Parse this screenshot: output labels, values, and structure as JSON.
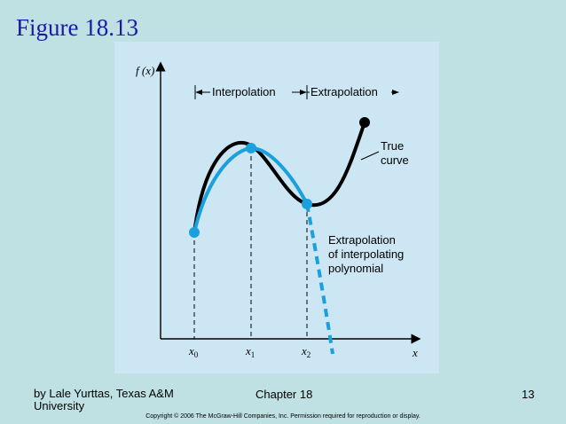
{
  "slide": {
    "title": "Figure 18.13"
  },
  "figure": {
    "y_axis_label": "f (x)",
    "x_axis_label": "x",
    "region_labels": {
      "interpolation": "Interpolation",
      "extrapolation": "Extrapolation"
    },
    "tick_labels": {
      "x0_main": "x",
      "x0_sub": "0",
      "x1_main": "x",
      "x1_sub": "1",
      "x2_main": "x",
      "x2_sub": "2"
    },
    "annotations": {
      "true_curve_line1": "True",
      "true_curve_line2": "curve",
      "extrap_line1": "Extrapolation",
      "extrap_line2": "of interpolating",
      "extrap_line3": "polynomial"
    },
    "colors": {
      "true_curve": "#000000",
      "interpolating_polynomial": "#1aa0dc",
      "background": "#cde6f3"
    }
  },
  "footer": {
    "author": "by Lale Yurttas, Texas A&M University",
    "chapter": "Chapter 18",
    "page": "13",
    "copyright": "Copyright © 2006 The McGraw-Hill Companies, Inc.  Permission required for reproduction or display."
  }
}
